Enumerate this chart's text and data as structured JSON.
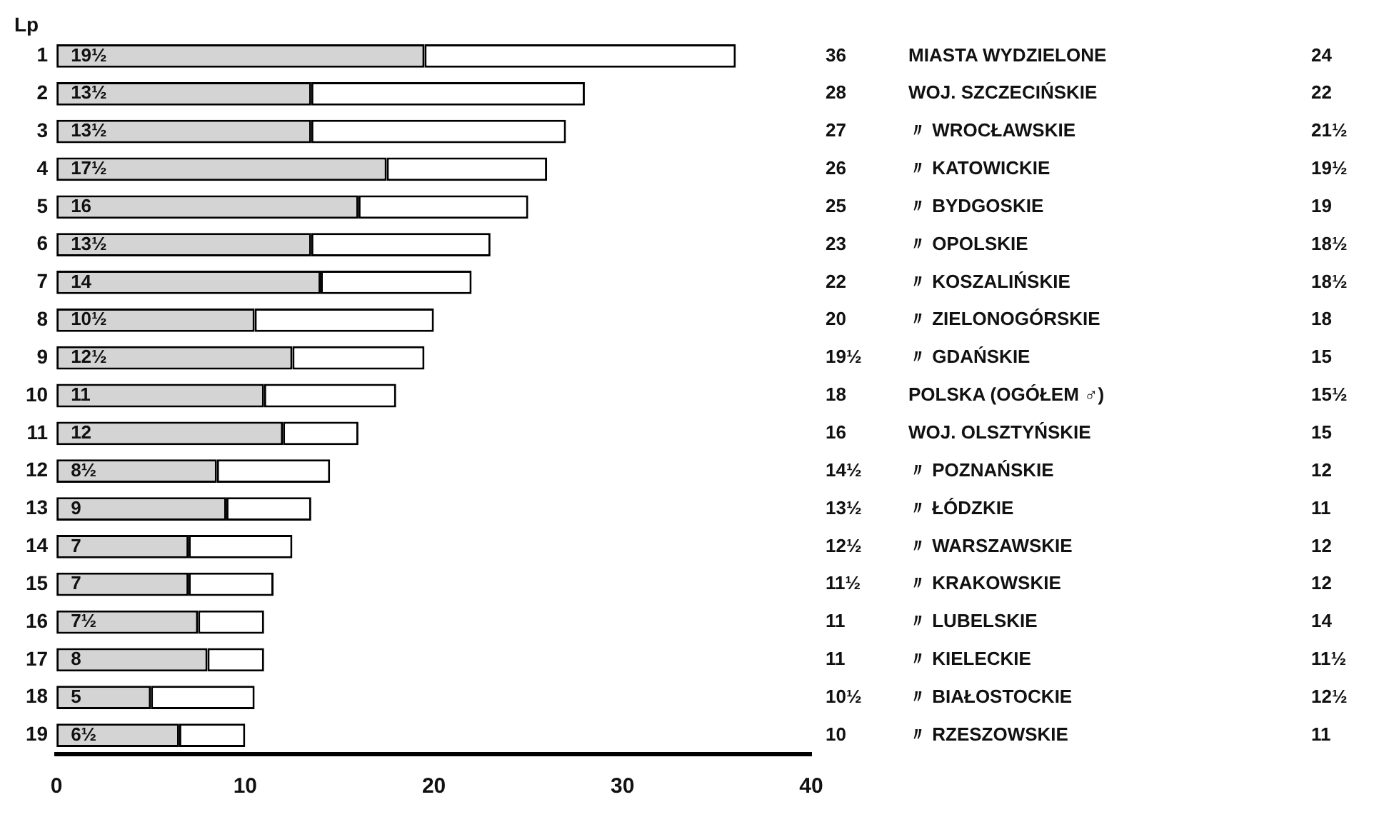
{
  "chart_data": {
    "type": "bar",
    "orientation": "horizontal",
    "ylabel": "Lp",
    "stacked": true,
    "categories": [
      "1",
      "2",
      "3",
      "4",
      "5",
      "6",
      "7",
      "8",
      "9",
      "10",
      "11",
      "12",
      "13",
      "14",
      "15",
      "16",
      "17",
      "18",
      "19"
    ],
    "series": [
      {
        "color": "#d4d4d4",
        "values": [
          19.5,
          13.5,
          13.5,
          17.5,
          16,
          13.5,
          14,
          10.5,
          12.5,
          11,
          12,
          8.5,
          9,
          7,
          7,
          7.5,
          8,
          5,
          6.5
        ],
        "value_labels": [
          "19½",
          "13½",
          "13½",
          "17½",
          "16",
          "13½",
          "14",
          "10½",
          "12½",
          "11",
          "12",
          "8½",
          "9",
          "7",
          "7",
          "7½",
          "8",
          "5",
          "6½"
        ]
      },
      {
        "color": "#ffffff",
        "values": [
          16.5,
          14.5,
          13.5,
          8.5,
          9,
          9.5,
          8,
          9.5,
          7,
          7,
          4,
          6,
          4.5,
          5.5,
          4.5,
          3.5,
          3,
          5.5,
          3.5
        ]
      }
    ],
    "xlim": [
      0,
      40
    ],
    "xticks": [
      0,
      10,
      20,
      30,
      40
    ],
    "grid": false,
    "legend": false,
    "annotations": [
      "36",
      "MIASTA WYDZIELONE",
      "24",
      "28",
      "WOJ. SZCZECIŃSKIE",
      "22",
      "27",
      "〃 WROCŁAWSKIE",
      "21½",
      "26",
      "〃 KATOWICKIE",
      "19½",
      "25",
      "〃 BYDGOSKIE",
      "19",
      "23",
      "〃 OPOLSKIE",
      "18½",
      "22",
      "〃 KOSZALIŃSKIE",
      "18½",
      "20",
      "〃 ZIELONOGÓRSKIE",
      "18",
      "19½",
      "〃 GDAŃSKIE",
      "15",
      "18",
      "POLSKA (OGÓŁEM ♂)",
      "15½",
      "16",
      "WOJ. OLSZTYŃSKIE",
      "15",
      "14½",
      "〃 POZNAŃSKIE",
      "12",
      "13½",
      "〃 ŁÓDZKIE",
      "11",
      "12½",
      "〃 WARSZAWSKIE",
      "12",
      "11½",
      "〃 KRAKOWSKIE",
      "12",
      "11",
      "〃 LUBELSKIE",
      "14",
      "11",
      "〃 KIELECKIE",
      "11½",
      "10½",
      "〃 BIAŁOSTOCKIE",
      "12½",
      "10",
      "〃 RZESZOWSKIE",
      "11"
    ]
  }
}
